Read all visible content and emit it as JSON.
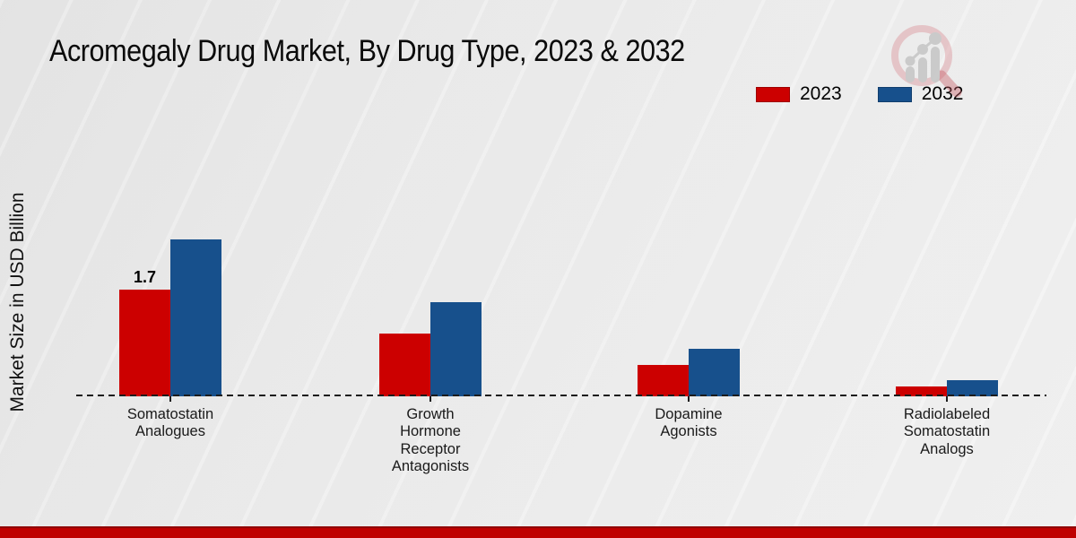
{
  "title": "Acromegaly Drug Market, By Drug Type, 2023 & 2032",
  "y_axis_label": "Market Size in USD Billion",
  "legend": [
    {
      "label": "2023",
      "color": "#cc0000"
    },
    {
      "label": "2032",
      "color": "#17508c"
    }
  ],
  "colors": {
    "bar_2023": "#cc0000",
    "bar_2032": "#17508c",
    "footer_stripe": "#bf0000",
    "baseline": "#1c1c1c",
    "background": "#ececec"
  },
  "chart_data": {
    "type": "bar",
    "categories": [
      "Somatostatin\nAnalogues",
      "Growth\nHormone\nReceptor\nAntagonists",
      "Dopamine\nAgonists",
      "Radiolabeled\nSomatostatin\nAnalogs"
    ],
    "series": [
      {
        "name": "2023",
        "color": "#cc0000",
        "values": [
          1.7,
          1.0,
          0.5,
          0.15
        ]
      },
      {
        "name": "2032",
        "color": "#17508c",
        "values": [
          2.5,
          1.5,
          0.75,
          0.25
        ]
      }
    ],
    "data_labels": [
      {
        "series": "2023",
        "category_index": 0,
        "text": "1.7"
      }
    ],
    "title": "Acromegaly Drug Market, By Drug Type, 2023 & 2032",
    "xlabel": "",
    "ylabel": "Market Size in USD Billion",
    "ylim": [
      0,
      3
    ],
    "grid": false,
    "baseline_style": "dashed",
    "legend_position": "top-right",
    "value_axis_hidden": true
  }
}
